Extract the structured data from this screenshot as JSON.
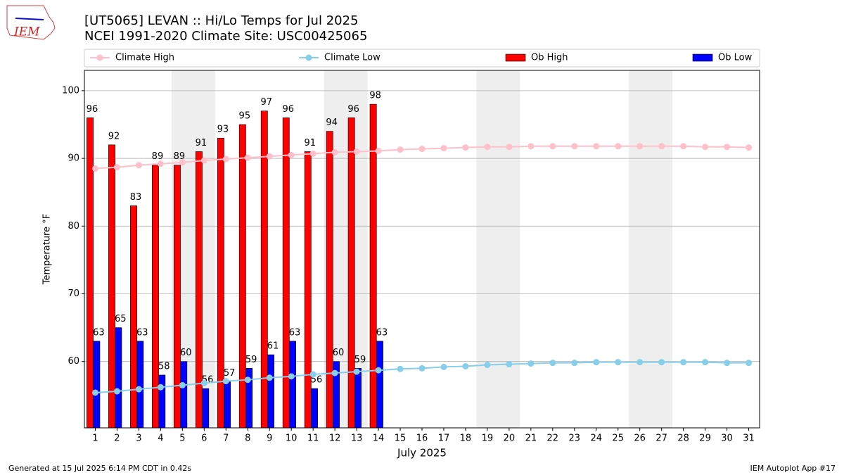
{
  "chart_data": {
    "type": "bar",
    "title": "[UT5065] LEVAN :: Hi/Lo Temps for Jul 2025",
    "subtitle": "NCEI 1991-2020 Climate Site: USC00425065",
    "xlabel": "July 2025",
    "ylabel": "Temperature °F",
    "logo_text": "IEM",
    "footer_left": "Generated at 15 Jul 2025 6:14 PM CDT in 0.42s",
    "footer_right": "IEM Autoplot App #17",
    "x": [
      1,
      2,
      3,
      4,
      5,
      6,
      7,
      8,
      9,
      10,
      11,
      12,
      13,
      14,
      15,
      16,
      17,
      18,
      19,
      20,
      21,
      22,
      23,
      24,
      25,
      26,
      27,
      28,
      29,
      30,
      31
    ],
    "xlim": [
      0.5,
      31.5
    ],
    "xticks": [
      1,
      2,
      3,
      4,
      5,
      6,
      7,
      8,
      9,
      10,
      11,
      12,
      13,
      14,
      15,
      16,
      17,
      18,
      19,
      20,
      21,
      22,
      23,
      24,
      25,
      26,
      27,
      28,
      29,
      30,
      31
    ],
    "ylim": [
      50.2,
      103
    ],
    "yticks": [
      60,
      70,
      80,
      90,
      100
    ],
    "grid": true,
    "highlight_ranges": [
      [
        5,
        6
      ],
      [
        12,
        13
      ],
      [
        19,
        20
      ],
      [
        26,
        27
      ]
    ],
    "highlight_color": "#eeeeee",
    "series": [
      {
        "name": "Climate High",
        "type": "line",
        "color": "#ffc0cb",
        "values": [
          88.5,
          88.7,
          89.0,
          89.2,
          89.4,
          89.7,
          89.9,
          90.1,
          90.3,
          90.5,
          90.7,
          90.9,
          91.0,
          91.1,
          91.3,
          91.4,
          91.5,
          91.6,
          91.7,
          91.7,
          91.8,
          91.8,
          91.8,
          91.8,
          91.8,
          91.8,
          91.8,
          91.8,
          91.7,
          91.7,
          91.6
        ]
      },
      {
        "name": "Climate Low",
        "type": "line",
        "color": "#87ceeb",
        "values": [
          55.4,
          55.6,
          55.9,
          56.2,
          56.5,
          56.8,
          57.1,
          57.3,
          57.6,
          57.8,
          58.1,
          58.3,
          58.5,
          58.7,
          58.9,
          59.0,
          59.2,
          59.3,
          59.5,
          59.6,
          59.7,
          59.8,
          59.8,
          59.9,
          59.9,
          59.9,
          59.9,
          59.9,
          59.9,
          59.8,
          59.8
        ]
      },
      {
        "name": "Ob High",
        "type": "bar",
        "color": "#ff0000",
        "values": [
          96,
          92,
          83,
          89,
          89,
          91,
          93,
          95,
          97,
          96,
          91,
          94,
          96,
          98,
          null,
          null,
          null,
          null,
          null,
          null,
          null,
          null,
          null,
          null,
          null,
          null,
          null,
          null,
          null,
          null,
          null
        ]
      },
      {
        "name": "Ob Low",
        "type": "bar",
        "color": "#0000ff",
        "values": [
          63,
          65,
          63,
          58,
          60,
          56,
          57,
          59,
          61,
          63,
          56,
          60,
          59,
          63,
          null,
          null,
          null,
          null,
          null,
          null,
          null,
          null,
          null,
          null,
          null,
          null,
          null,
          null,
          null,
          null,
          null
        ]
      }
    ]
  }
}
